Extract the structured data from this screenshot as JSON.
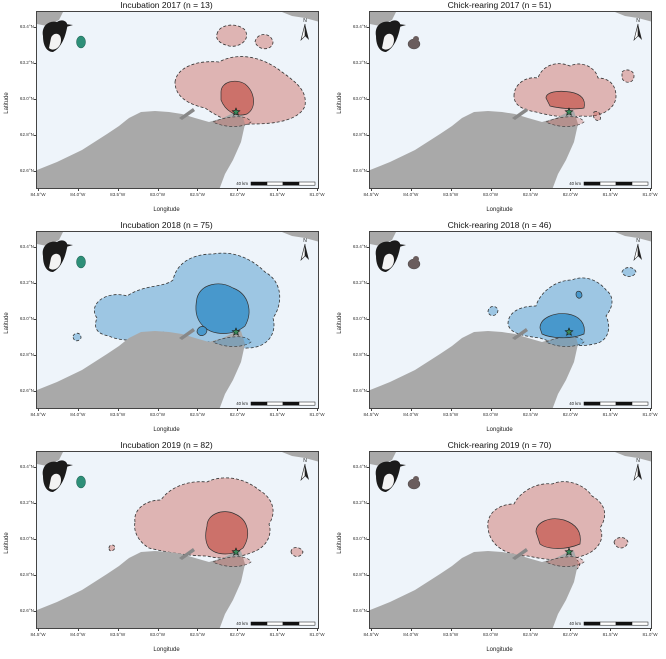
{
  "axes": {
    "xlabel": "Longitude",
    "ylabel": "Latitude",
    "xticks": [
      "84.5°W",
      "84.0°W",
      "83.5°W",
      "83.0°W",
      "82.5°W",
      "82.0°W",
      "81.5°W",
      "81.0°W"
    ],
    "yticks": [
      "63.4°N",
      "63.2°N",
      "63.0°N",
      "62.8°N",
      "62.6°N"
    ]
  },
  "scalebar_label": "40 km",
  "north_label": "N",
  "colors": {
    "incubation_2017_2019": "#c9655d",
    "year_2018": "#3a8fc8",
    "incubation_egg": "#2e8f78",
    "chick": "#6a5d5d",
    "land": "#a9a9a9",
    "sea": "#eef4fa"
  },
  "chart_data": [
    {
      "type": "map",
      "title": "Incubation 2017 (n = 13)",
      "phase": "Incubation",
      "year": 2017,
      "n": 13
    },
    {
      "type": "map",
      "title": "Chick-rearing 2017 (n = 51)",
      "phase": "Chick-rearing",
      "year": 2017,
      "n": 51
    },
    {
      "type": "map",
      "title": "Incubation 2018 (n = 75)",
      "phase": "Incubation",
      "year": 2018,
      "n": 75
    },
    {
      "type": "map",
      "title": "Chick-rearing 2018 (n = 46)",
      "phase": "Chick-rearing",
      "year": 2018,
      "n": 46
    },
    {
      "type": "map",
      "title": "Incubation 2019 (n = 82)",
      "phase": "Incubation",
      "year": 2019,
      "n": 82
    },
    {
      "type": "map",
      "title": "Chick-rearing 2019 (n = 70)",
      "phase": "Chick-rearing",
      "year": 2019,
      "n": 70
    }
  ]
}
